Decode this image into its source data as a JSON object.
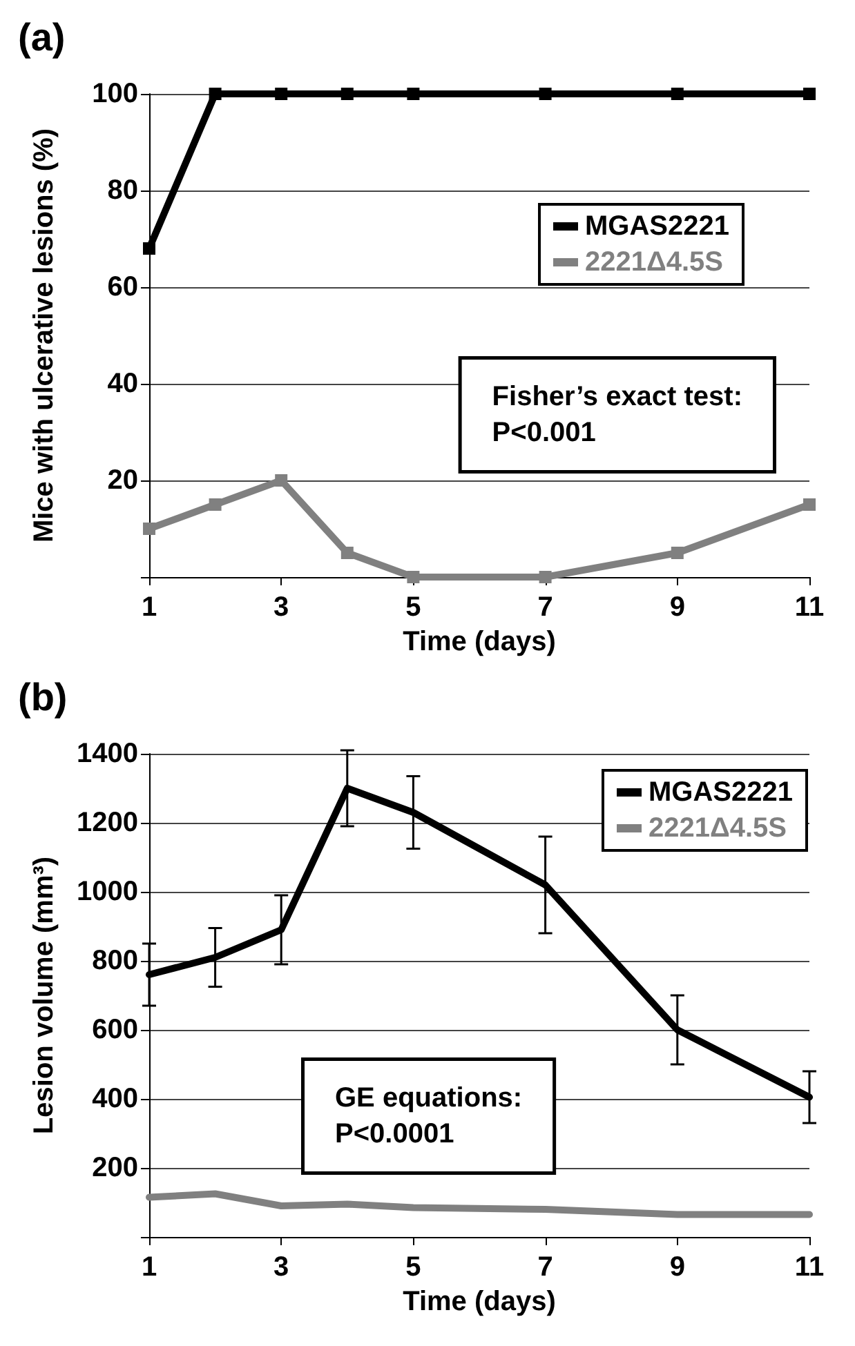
{
  "chart_data": [
    {
      "type": "line",
      "title": "(a)",
      "xlabel": "Time (days)",
      "ylabel": "Mice with ulcerative lesions (%)",
      "x": [
        1,
        2,
        3,
        4,
        5,
        7,
        9,
        11
      ],
      "xlim": [
        1,
        11
      ],
      "xticks": [
        1,
        3,
        5,
        7,
        9,
        11
      ],
      "ylim": [
        0,
        100
      ],
      "yticks": [
        {
          "value": 0,
          "label": null
        },
        20,
        40,
        60,
        80,
        100
      ],
      "grid": "y",
      "legend": "right",
      "marker": "square",
      "line_style": "solid",
      "series": [
        {
          "name": "MGAS2221",
          "color": "#000000",
          "values": [
            68,
            100,
            100,
            100,
            100,
            100,
            100,
            100
          ]
        },
        {
          "name": "2221Δ4.5S",
          "color": "#808080",
          "values": [
            10,
            15,
            20,
            5,
            0,
            0,
            5,
            15
          ]
        }
      ],
      "annotations": [
        "Fisher’s exact test:\nP<0.001"
      ]
    },
    {
      "type": "line",
      "title": "(b)",
      "xlabel": "Time (days)",
      "ylabel": "Lesion volume (mm³)",
      "x": [
        1,
        2,
        3,
        4,
        5,
        7,
        9,
        11
      ],
      "xlim": [
        1,
        11
      ],
      "xticks": [
        1,
        3,
        5,
        7,
        9,
        11
      ],
      "ylim": [
        0,
        1400
      ],
      "yticks": [
        {
          "value": 0,
          "label": null
        },
        200,
        400,
        600,
        800,
        1000,
        1200,
        1400
      ],
      "grid": "y",
      "legend": "top right",
      "marker": "none",
      "line_style": "solid",
      "series": [
        {
          "name": "MGAS2221",
          "color": "#000000",
          "values": [
            760,
            810,
            890,
            1300,
            1230,
            1020,
            600,
            405
          ],
          "errors": [
            90,
            85,
            100,
            110,
            105,
            140,
            100,
            75
          ]
        },
        {
          "name": "2221Δ4.5S",
          "color": "#808080",
          "values": [
            115,
            125,
            90,
            95,
            85,
            80,
            65,
            65
          ]
        }
      ],
      "annotations": [
        "GE equations:\nP<0.0001"
      ]
    }
  ]
}
